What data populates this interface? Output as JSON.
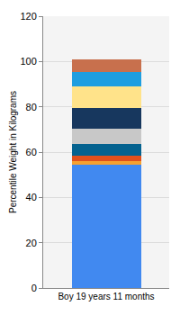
{
  "chart_data": {
    "type": "bar",
    "stacked": true,
    "grid": true,
    "y_label": "Percentile Weight in Kilograms",
    "categories": [
      "Boy 19 years 11 months"
    ],
    "series": [
      {
        "color": "#4189f0",
        "values": [
          54.5
        ]
      },
      {
        "color": "#f6a12f",
        "values": [
          1.5
        ]
      },
      {
        "color": "#e0501c",
        "values": [
          2.5
        ]
      },
      {
        "color": "#04628f",
        "values": [
          5
        ]
      },
      {
        "color": "#c8c8c8",
        "values": [
          7
        ]
      },
      {
        "color": "#17375e",
        "values": [
          9
        ]
      },
      {
        "color": "#ffe38a",
        "values": [
          9.5
        ]
      },
      {
        "color": "#1e9ee0",
        "values": [
          6.5
        ]
      },
      {
        "color": "#c8704d",
        "values": [
          5.5
        ]
      }
    ],
    "ylim": [
      0,
      120
    ],
    "yticks": [
      0,
      20,
      40,
      60,
      80,
      100,
      120
    ]
  }
}
